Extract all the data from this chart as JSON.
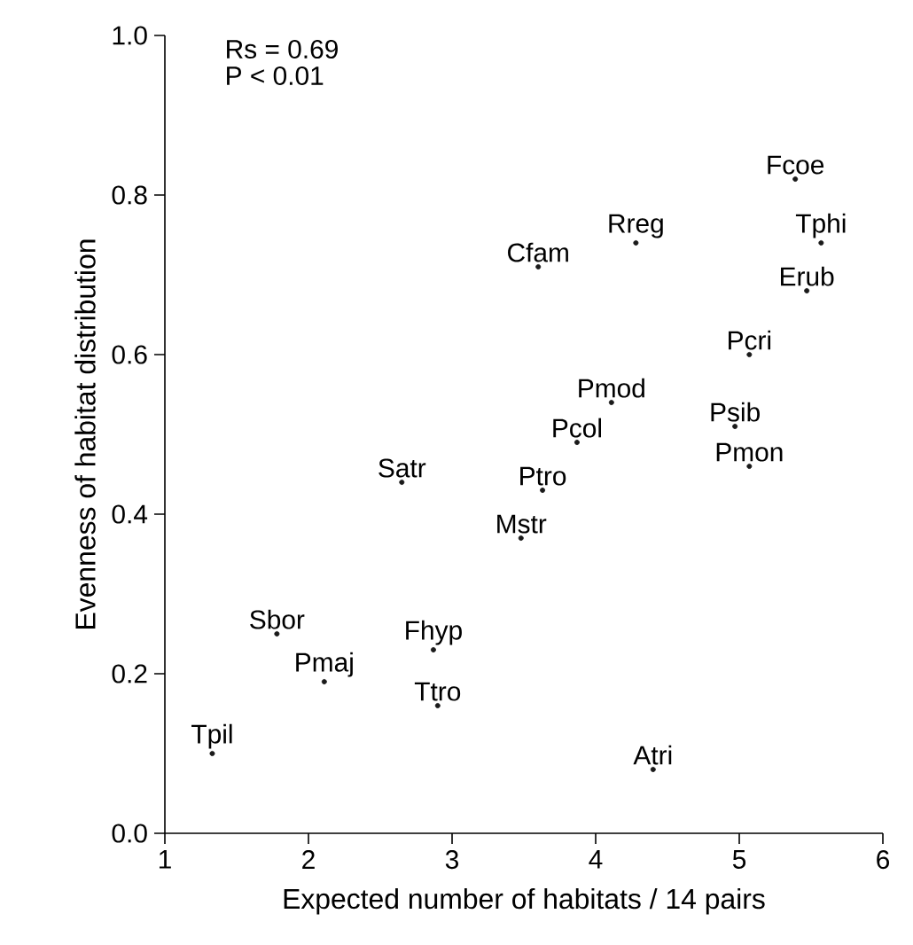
{
  "chart_data": {
    "type": "scatter",
    "xlabel": "Expected number of habitats / 14 pairs",
    "ylabel": "Evenness of habitat distribution",
    "x": [
      5.39,
      5.57,
      5.47,
      5.07,
      4.28,
      3.6,
      4.11,
      3.87,
      4.97,
      5.07,
      2.65,
      3.63,
      3.48,
      1.78,
      2.87,
      2.11,
      2.9,
      1.33,
      4.4
    ],
    "values": [
      0.82,
      0.74,
      0.68,
      0.6,
      0.74,
      0.71,
      0.54,
      0.49,
      0.51,
      0.46,
      0.44,
      0.43,
      0.37,
      0.25,
      0.23,
      0.19,
      0.16,
      0.1,
      0.08
    ],
    "color": "#1a1a1a",
    "xlim": [
      1,
      6
    ],
    "ylim": [
      0,
      1.0
    ],
    "xticks": [
      1,
      2,
      3,
      4,
      5,
      6
    ],
    "yticks": [
      {
        "value": 0,
        "label": "0.0"
      },
      0.2,
      0.4,
      0.6,
      0.8,
      {
        "value": 1,
        "label": "1.0"
      }
    ],
    "grid": false,
    "annotations": [
      "Rs = 0.69",
      "P < 0.01",
      {
        "text": "Fcoe",
        "x": 5.39,
        "y": 0.82
      },
      {
        "text": "Tphi",
        "x": 5.57,
        "y": 0.74
      },
      {
        "text": "Erub",
        "x": 5.47,
        "y": 0.68
      },
      {
        "text": "Pcri",
        "x": 5.07,
        "y": 0.6
      },
      {
        "text": "Rreg",
        "x": 4.28,
        "y": 0.74
      },
      {
        "text": "Cfam",
        "x": 3.6,
        "y": 0.71
      },
      {
        "text": "Pmod",
        "x": 4.11,
        "y": 0.54
      },
      {
        "text": "Pcol",
        "x": 3.87,
        "y": 0.49
      },
      {
        "text": "Psib",
        "x": 4.97,
        "y": 0.51
      },
      {
        "text": "Pmon",
        "x": 5.07,
        "y": 0.46
      },
      {
        "text": "Satr",
        "x": 2.65,
        "y": 0.44
      },
      {
        "text": "Ptro",
        "x": 3.63,
        "y": 0.43
      },
      {
        "text": "Mstr",
        "x": 3.48,
        "y": 0.37
      },
      {
        "text": "Sbor",
        "x": 1.78,
        "y": 0.25
      },
      {
        "text": "Fhyp",
        "x": 2.87,
        "y": 0.23
      },
      {
        "text": "Pmaj",
        "x": 2.11,
        "y": 0.19
      },
      {
        "text": "Ttro",
        "x": 2.9,
        "y": 0.16
      },
      {
        "text": "Tpil",
        "x": 1.33,
        "y": 0.1
      },
      {
        "text": "Atri",
        "x": 4.4,
        "y": 0.08
      }
    ]
  }
}
